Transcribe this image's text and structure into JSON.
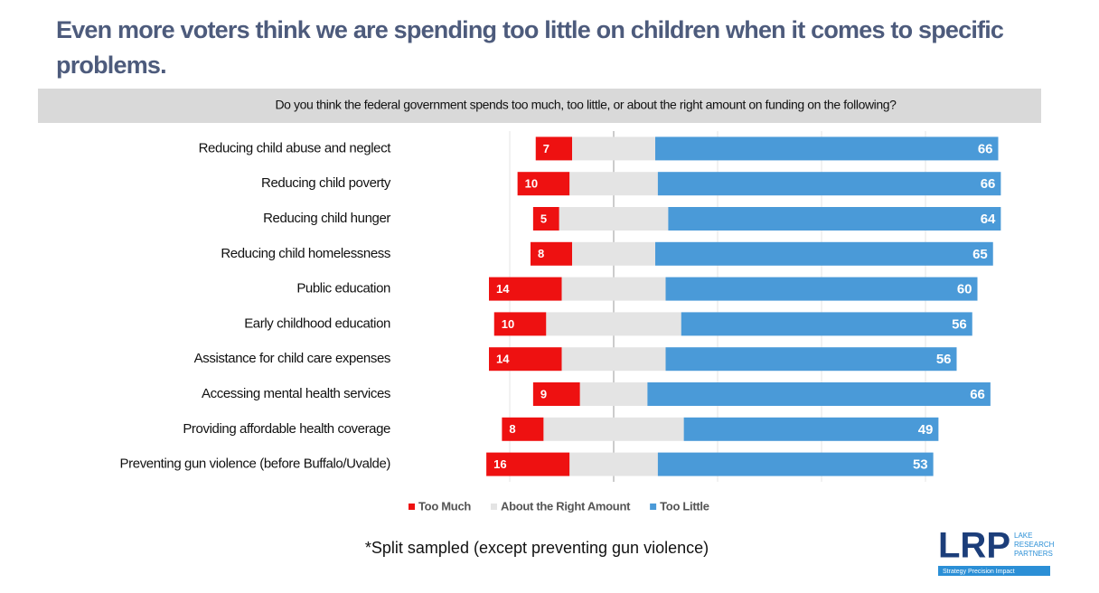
{
  "chart_data": {
    "type": "diverging_bar",
    "title": "Even more voters think we are spending too little on children when it comes to specific problems.",
    "subtitle": "Do you think the federal government spends too much, too little, or about the right amount on funding on the following?",
    "categories": [
      "Reducing child abuse and neglect",
      "Reducing child poverty",
      "Reducing child hunger",
      "Reducing child homelessness",
      "Public education",
      "Early childhood education",
      "Assistance for child care expenses",
      "Accessing mental health services",
      "Providing affordable health coverage",
      "Preventing gun violence (before Buffalo/Uvalde)"
    ],
    "series": [
      {
        "name": "Too Much",
        "color": "#ee1111",
        "side": "left",
        "show_labels": true,
        "values": [
          7,
          10,
          5,
          8,
          14,
          10,
          14,
          9,
          8,
          16
        ]
      },
      {
        "name": "About the Right Amount",
        "color": "#e4e4e4",
        "side": "center",
        "show_labels": false,
        "values": [
          16,
          17,
          21,
          16,
          20,
          26,
          20,
          13,
          27,
          17
        ]
      },
      {
        "name": "Too Little",
        "color": "#4a9ad8",
        "side": "right",
        "show_labels": true,
        "values": [
          66,
          66,
          64,
          65,
          60,
          56,
          56,
          66,
          49,
          53
        ]
      }
    ],
    "xlim": [
      -40,
      80
    ],
    "gridlines": [
      -20,
      0,
      20,
      40,
      60
    ],
    "footnote": "*Split sampled (except preventing gun violence)"
  },
  "logo": {
    "mark": "LRP",
    "name": [
      "LAKE",
      "RESEARCH",
      "PARTNERS"
    ],
    "tagline": "Strategy  Precision  Impact"
  }
}
